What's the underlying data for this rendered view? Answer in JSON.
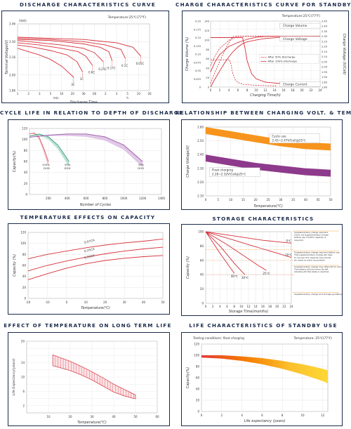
{
  "panels": {
    "discharge": {
      "title": "DISCHARGE CHARACTERISTICS CURVE"
    },
    "charge": {
      "title": "CHARGE CHARACTERISTICS CURVE FOR STANDBY USE"
    },
    "cycle": {
      "title": "CYCLE LIFE IN RELATION TO DEPTH OF DISCHARGE"
    },
    "chargevolt": {
      "title": "RELATIONSHIP BETWEEN CHARGING VOLT. & TEMPER."
    },
    "tempcap": {
      "title": "TEMPERATURE EFFECTS ON CAPACITY"
    },
    "storage": {
      "title": "STORAGE CHARACTERISTICS"
    },
    "templife": {
      "title": "EFFECT OF TEMPERATURE ON LONG TERM LIFE"
    },
    "standby": {
      "title": "LIFE CHARACTERISTICS OF STANDBY USE"
    }
  },
  "chart_data": [
    {
      "id": "discharge",
      "type": "line",
      "title": "DISCHARGE CHARACTERISTICS CURVE",
      "annotation": "Temperature:25℃(77℉)",
      "xlabel": "Discharge Time",
      "ylabel": "Terminal Voltage(V)",
      "y_unit": "(Volt)",
      "x_ticks": [
        "1",
        "2",
        "3",
        "5",
        "10",
        "20",
        "30",
        "60",
        "2",
        "3",
        "5",
        "10",
        "20"
      ],
      "x_unit_labels": [
        "min",
        "h"
      ],
      "y_ticks": [
        1.86,
        2.0,
        2.16,
        2.3,
        2.46
      ],
      "ylim": [
        1.86,
        2.46
      ],
      "series": [
        {
          "name": "3C",
          "x": [
            0,
            1,
            2,
            3,
            4,
            5.1
          ],
          "y": [
            2.24,
            2.21,
            2.18,
            2.14,
            2.08,
            1.98
          ]
        },
        {
          "name": "1C",
          "x": [
            0,
            1.5,
            3,
            4.5,
            5.4,
            5.9
          ],
          "y": [
            2.27,
            2.25,
            2.22,
            2.18,
            2.12,
            2.03
          ]
        },
        {
          "name": "0.6C",
          "x": [
            0,
            2,
            4,
            5.5,
            6.2,
            6.8
          ],
          "y": [
            2.29,
            2.27,
            2.24,
            2.21,
            2.17,
            2.09
          ]
        },
        {
          "name": "0.25C",
          "x": [
            0,
            2,
            4,
            6,
            7,
            7.8
          ],
          "y": [
            2.31,
            2.29,
            2.27,
            2.24,
            2.2,
            2.12
          ]
        },
        {
          "name": "0.17C",
          "x": [
            0,
            3,
            6,
            7.5,
            8.3,
            8.6
          ],
          "y": [
            2.32,
            2.31,
            2.28,
            2.25,
            2.21,
            2.13
          ]
        },
        {
          "name": "0.1C",
          "x": [
            0,
            3,
            6,
            8,
            9.4,
            9.8
          ],
          "y": [
            2.33,
            2.32,
            2.3,
            2.27,
            2.23,
            2.15
          ]
        },
        {
          "name": "0.05C",
          "x": [
            0,
            3,
            6,
            9,
            10.5,
            11.2
          ],
          "y": [
            2.34,
            2.33,
            2.32,
            2.29,
            2.25,
            2.17
          ]
        }
      ]
    },
    {
      "id": "charge",
      "type": "line",
      "title": "CHARGE CHARACTERISTICS CURVE FOR STANDBY USE",
      "annotation": "Temperature:25℃(77℉)",
      "xlabel": "Charging Time(h)",
      "ylabel_left": "Charge Volume (%)",
      "ylabel_right": "Charge Voltage (V/Cell)",
      "x_ticks": [
        0,
        2,
        4,
        6,
        8,
        10,
        12,
        14,
        16,
        18,
        20,
        22,
        24
      ],
      "y_left_ticks": [
        0,
        0.025,
        0.05,
        0.075,
        0.1,
        0.125,
        0.15,
        0.175,
        0.2
      ],
      "y_left_labels": [
        "0",
        "0.025",
        "0.05",
        "0.075",
        "0.10",
        "0.125",
        "0.15",
        "0.175",
        "0.20"
      ],
      "y_mid_ticks": [
        0,
        20,
        40,
        60,
        80,
        100,
        120,
        140
      ],
      "y_right_ticks": [
        1.8,
        1.85,
        1.9,
        1.95,
        2.0,
        2.05,
        2.1,
        2.15,
        2.2,
        2.25,
        2.3,
        2.35,
        2.4,
        2.45
      ],
      "y_right_labels": [
        "1.80",
        "1.85",
        "1.90",
        "1.95",
        "2.00",
        "2.05",
        "2.10",
        "2.15",
        "2.20",
        "2.25",
        "2.30",
        "2.35",
        "2.40",
        "2.45"
      ],
      "legend": [
        "After 50% Discharge",
        "After 100% Discharge"
      ],
      "curve_labels": [
        "Charge Volume",
        "Charge Voltage",
        "Charge Current"
      ],
      "series": [
        {
          "name": "Charge Volume",
          "x": [
            0,
            1,
            2,
            3,
            4,
            5,
            6,
            7,
            8,
            10,
            12,
            16,
            20,
            24
          ],
          "y": [
            0,
            18,
            34,
            50,
            64,
            76,
            85,
            92,
            96,
            100,
            103,
            106,
            107,
            108
          ]
        },
        {
          "name": "Charge Voltage",
          "x": [
            0,
            1,
            2,
            4,
            6,
            8,
            10,
            12,
            16,
            20,
            24
          ],
          "y": [
            1.95,
            2.05,
            2.12,
            2.2,
            2.24,
            2.27,
            2.29,
            2.3,
            2.3,
            2.3,
            2.3
          ]
        },
        {
          "name": "Charge Current",
          "x": [
            0,
            6,
            7,
            7.5,
            8,
            9,
            10,
            12,
            16,
            20,
            24
          ],
          "y": [
            0.15,
            0.15,
            0.15,
            0.12,
            0.08,
            0.04,
            0.025,
            0.015,
            0.01,
            0.008,
            0.006
          ]
        }
      ]
    },
    {
      "id": "cycle",
      "type": "line",
      "title": "CYCLE LIFE IN RELATION TO DEPTH OF DISCHARGE",
      "xlabel": "Number of Cycles",
      "ylabel": "Capacity(%)",
      "x_ticks": [
        200,
        400,
        600,
        800,
        1000,
        1200,
        1400
      ],
      "y_ticks": [
        0,
        20,
        40,
        60,
        80,
        100,
        120
      ],
      "xlim": [
        0,
        1400
      ],
      "ylim": [
        0,
        120
      ],
      "series": [
        {
          "name": "100% DOD",
          "x": [
            0,
            50,
            100,
            150,
            200
          ],
          "y": [
            110,
            112,
            105,
            85,
            60
          ]
        },
        {
          "name": "50% DOD",
          "x": [
            0,
            100,
            200,
            300,
            420
          ],
          "y": [
            106,
            110,
            105,
            90,
            60
          ]
        },
        {
          "name": "30% DOD",
          "x": [
            0,
            200,
            400,
            600,
            800,
            1000,
            1200
          ],
          "y": [
            104,
            108,
            110,
            110,
            105,
            90,
            60
          ]
        }
      ]
    },
    {
      "id": "chargevolt",
      "type": "area",
      "title": "RELATIONSHIP BETWEEN CHARGING VOLT. & TEMPER.",
      "xlabel": "Temperature(℃)",
      "ylabel": "Charge Voltage(V)",
      "x_ticks": [
        0,
        5,
        10,
        15,
        20,
        25,
        30,
        35,
        40,
        45,
        50
      ],
      "y_ticks": [
        2.1,
        2.2,
        2.3,
        2.4,
        2.5,
        2.6
      ],
      "y_tick_labels": [
        "2.10",
        "2.20",
        "2.30",
        "2.40",
        "2.50",
        "2.60"
      ],
      "xlim": [
        0,
        50
      ],
      "ylim": [
        2.1,
        2.6
      ],
      "bands": [
        {
          "name": "Cycle use",
          "label": "2.43~2.47V/Cell@25℃",
          "color": "#f7941d",
          "x": [
            0,
            10,
            20,
            30,
            40,
            50
          ],
          "top": [
            2.6,
            2.57,
            2.54,
            2.51,
            2.49,
            2.48
          ],
          "bottom": [
            2.55,
            2.52,
            2.49,
            2.46,
            2.44,
            2.43
          ]
        },
        {
          "name": "Float charging",
          "label": "2.28~2.32V/Cell@25℃",
          "color": "#8e3a8c",
          "x": [
            0,
            10,
            20,
            30,
            40,
            50
          ],
          "top": [
            2.4,
            2.37,
            2.34,
            2.32,
            2.3,
            2.29
          ],
          "bottom": [
            2.35,
            2.32,
            2.29,
            2.27,
            2.25,
            2.24
          ]
        }
      ]
    },
    {
      "id": "tempcap",
      "type": "line",
      "title": "TEMPERATURE EFFECTS ON CAPACITY",
      "xlabel": "Temperature(℃)",
      "ylabel": "Capacity (%)",
      "x_ticks": [
        -20,
        -10,
        0,
        10,
        20,
        30,
        40,
        50
      ],
      "y_ticks": [
        0,
        20,
        40,
        60,
        80,
        100,
        120
      ],
      "xlim": [
        -20,
        50
      ],
      "ylim": [
        0,
        120
      ],
      "series": [
        {
          "name": "0.07CA",
          "x": [
            -20,
            -10,
            0,
            10,
            20,
            30,
            40,
            50
          ],
          "y": [
            72,
            80,
            86,
            92,
            97,
            101,
            104,
            108
          ]
        },
        {
          "name": "0.25CA",
          "x": [
            -20,
            -10,
            0,
            10,
            20,
            30,
            40,
            50
          ],
          "y": [
            50,
            60,
            68,
            75,
            81,
            86,
            90,
            93
          ]
        },
        {
          "name": "0.55CA",
          "x": [
            -20,
            -10,
            0,
            10,
            20,
            30,
            40,
            50
          ],
          "y": [
            34,
            45,
            55,
            63,
            69,
            73,
            76,
            78
          ]
        }
      ]
    },
    {
      "id": "storage",
      "type": "line",
      "title": "STORAGE CHARACTERISTICS",
      "xlabel": "Storage Time(months)",
      "ylabel": "Capacity (%)",
      "x_ticks": [
        0,
        2,
        4,
        6,
        8,
        10,
        12,
        14,
        16,
        18,
        20,
        22,
        24
      ],
      "y_ticks": [
        0,
        20,
        40,
        60,
        80,
        100
      ],
      "xlim": [
        0,
        24
      ],
      "ylim": [
        0,
        100
      ],
      "notes": [
        "Supplementary charge required.\nCarry out supplementary charge before use if 100% capacity is required.",
        "Supplementary charge required before use.\nThis supplementary charge will help to recover the capacity and should be made as early as possible.",
        "Supplementary charge may often fail to recover the capacity.\nThe battery should never be left standing till this state is reached.",
        "Supplementary charge and storage guidelines"
      ],
      "series": [
        {
          "name": "0℃",
          "x": [
            0,
            4,
            8,
            12,
            16,
            20,
            24
          ],
          "y": [
            100,
            97,
            94,
            91,
            88,
            86,
            84
          ]
        },
        {
          "name": "10℃",
          "x": [
            0,
            4,
            8,
            12,
            16,
            20,
            24
          ],
          "y": [
            100,
            94,
            88,
            82,
            76,
            70,
            64
          ]
        },
        {
          "name": "25℃",
          "x": [
            0,
            3,
            6,
            9,
            12,
            15,
            17
          ],
          "y": [
            100,
            91,
            82,
            72,
            62,
            52,
            46
          ]
        },
        {
          "name": "30℃",
          "x": [
            0,
            2,
            4,
            6,
            8,
            10,
            11
          ],
          "y": [
            100,
            90,
            80,
            68,
            56,
            45,
            40
          ]
        },
        {
          "name": "40℃",
          "x": [
            0,
            2,
            4,
            6,
            8
          ],
          "y": [
            100,
            85,
            70,
            56,
            42
          ]
        }
      ]
    },
    {
      "id": "templife",
      "type": "area",
      "title": "EFFECT OF TEMPERATURE ON LONG TERM LIFE",
      "xlabel": "Temperature(℃)",
      "ylabel": "Life Expectancy(years)",
      "x_ticks": [
        10,
        20,
        30,
        40,
        50,
        60
      ],
      "y_ticks": [
        2,
        4,
        6,
        8,
        10,
        12,
        14,
        16,
        18,
        20
      ],
      "xlim": [
        0,
        60
      ],
      "ylim": [
        0,
        20
      ],
      "band": {
        "x": [
          12,
          20,
          25,
          30,
          35,
          40,
          45,
          50
        ],
        "top": [
          16.2,
          14.4,
          13,
          11.5,
          9.8,
          8,
          6.5,
          5
        ],
        "bottom": [
          13.2,
          11.8,
          10.6,
          9.2,
          7.5,
          5.8,
          4.7,
          3.9
        ]
      }
    },
    {
      "id": "standby",
      "type": "area",
      "title": "LIFE CHARACTERISTICS OF STANDBY USE",
      "annotation_left": "Testing conditions: float charging",
      "annotation_right": "Temperature: 25℃(77℉)",
      "xlabel": "Life expectancy (years)",
      "ylabel": "Capacity(%)",
      "x_ticks": [
        0,
        2,
        4,
        6,
        8,
        10,
        12
      ],
      "y_ticks": [
        0,
        20,
        40,
        60,
        80,
        100,
        120
      ],
      "xlim": [
        0,
        12.5
      ],
      "ylim": [
        0,
        120
      ],
      "band": {
        "x": [
          0,
          2,
          4,
          6,
          8,
          10,
          12,
          12.5
        ],
        "top": [
          100,
          100,
          98,
          95,
          90,
          84,
          76,
          73
        ],
        "bottom": [
          96,
          94,
          90,
          84,
          76,
          66,
          54,
          50
        ]
      }
    }
  ]
}
